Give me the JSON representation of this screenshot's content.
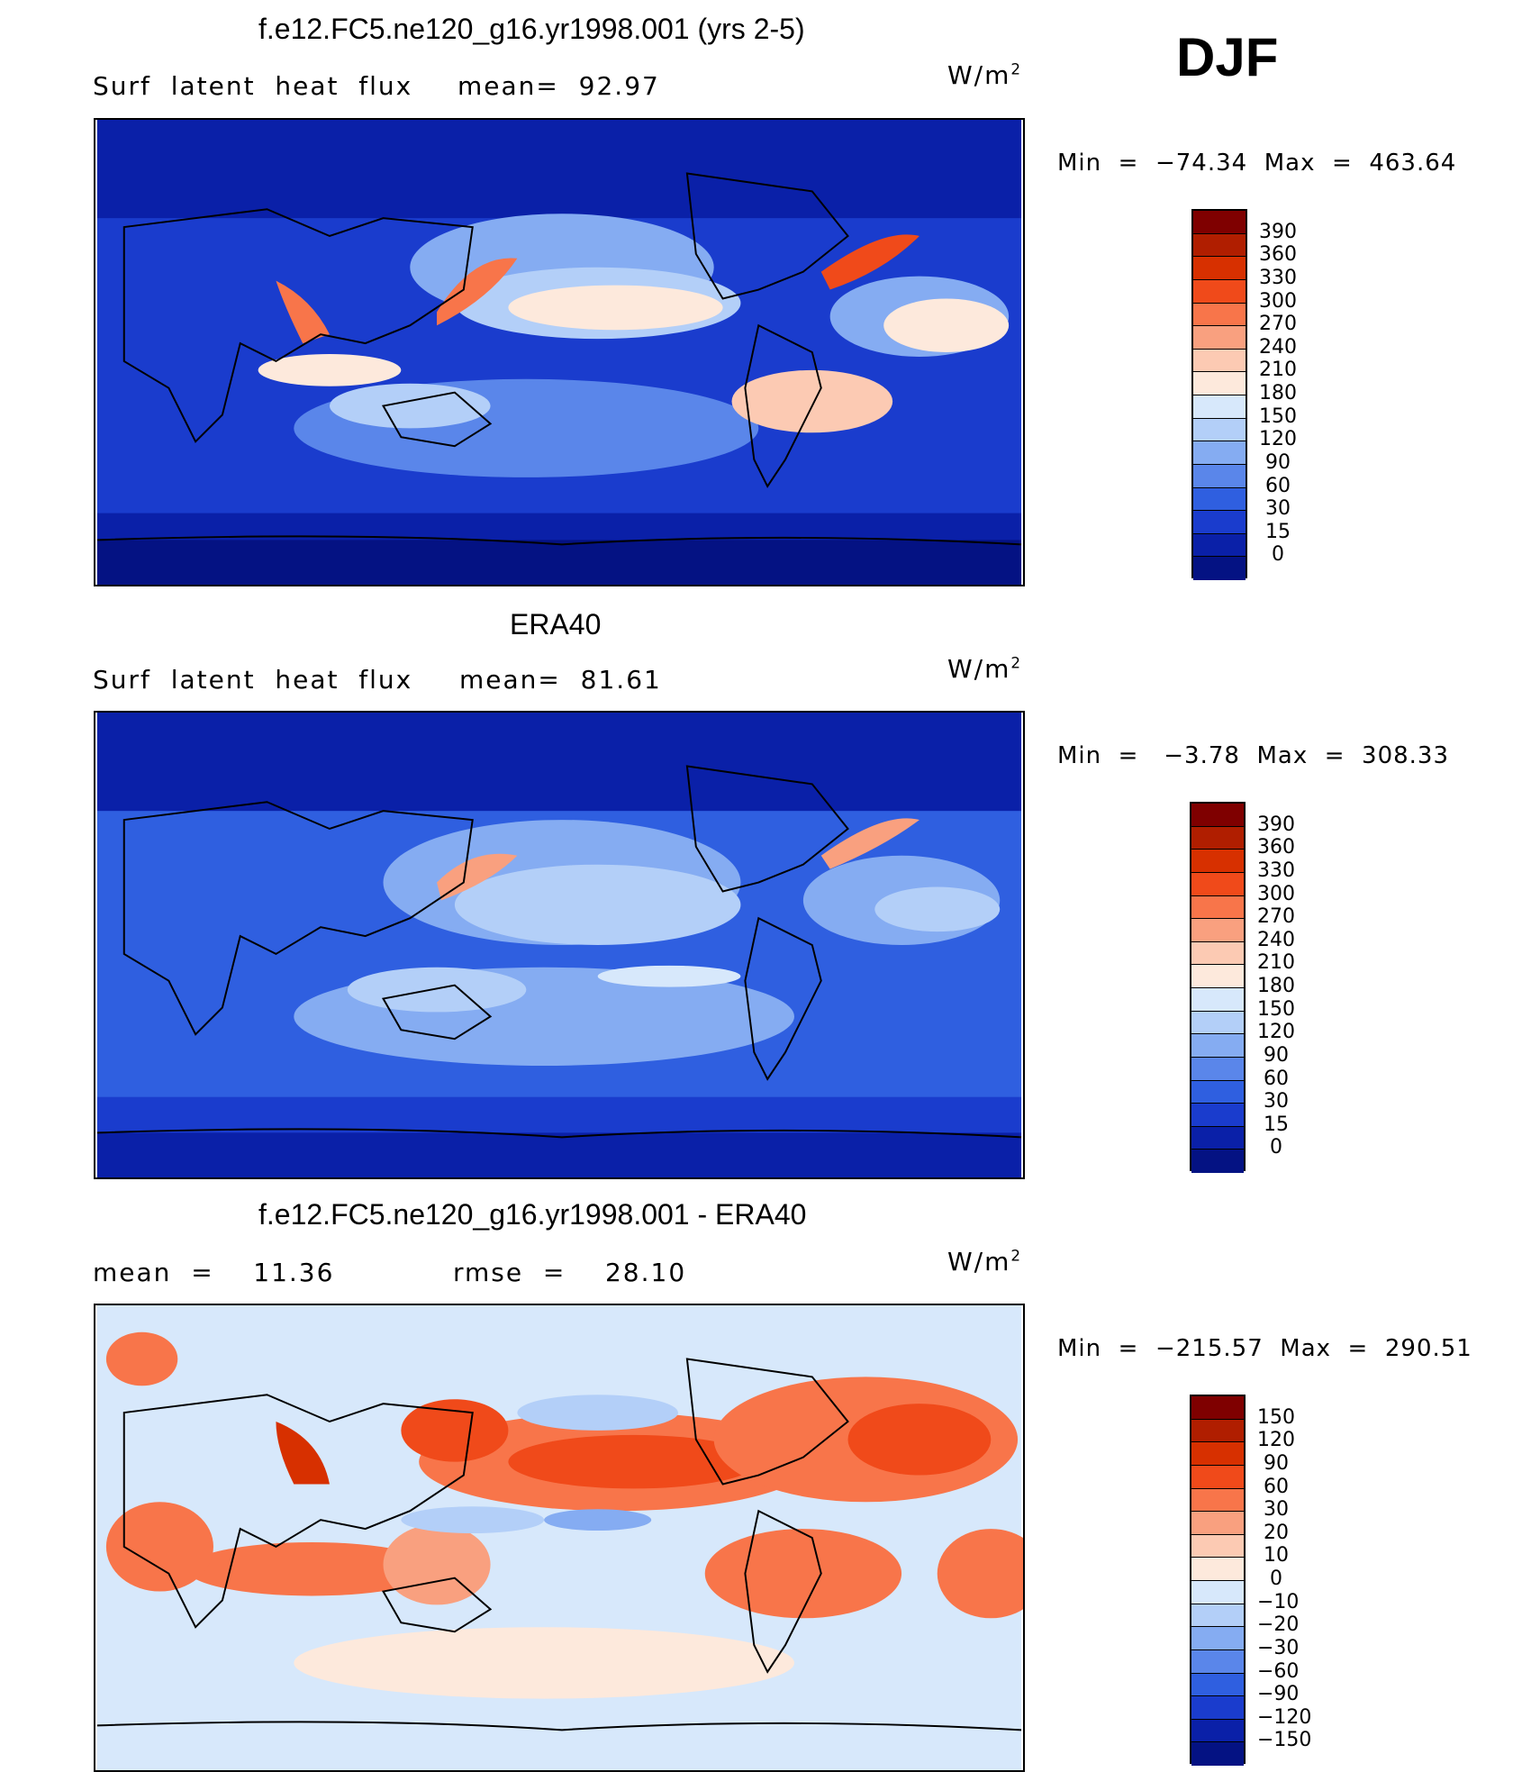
{
  "season": "DJF",
  "units_base": "W/m",
  "units_exp": "2",
  "panels": [
    {
      "title": "f.e12.FC5.ne120_g16.yr1998.001 (yrs 2-5)",
      "left_label": "Surf  latent  heat  flux",
      "stat_label": "mean=  92.97",
      "minmax": "Min  =  −74.34  Max  =  463.64",
      "levels": [
        "390",
        "360",
        "330",
        "300",
        "270",
        "240",
        "210",
        "180",
        "150",
        "120",
        "90",
        "60",
        "30",
        "15",
        "0"
      ],
      "colors": [
        "#7f0000",
        "#b01e00",
        "#d73000",
        "#f04a1a",
        "#f8754a",
        "#f9a07f",
        "#fccab3",
        "#fde9dc",
        "#d7e8fb",
        "#b3cff8",
        "#85acf2",
        "#5a86ea",
        "#2f5fe0",
        "#1a3ccd",
        "#0a20a8",
        "#041283"
      ]
    },
    {
      "title": "ERA40",
      "left_label": "Surf  latent  heat  flux",
      "stat_label": "mean=  81.61",
      "minmax": "Min  =   −3.78  Max  =  308.33",
      "levels": [
        "390",
        "360",
        "330",
        "300",
        "270",
        "240",
        "210",
        "180",
        "150",
        "120",
        "90",
        "60",
        "30",
        "15",
        "0"
      ],
      "colors": [
        "#7f0000",
        "#b01e00",
        "#d73000",
        "#f04a1a",
        "#f8754a",
        "#f9a07f",
        "#fccab3",
        "#fde9dc",
        "#d7e8fb",
        "#b3cff8",
        "#85acf2",
        "#5a86ea",
        "#2f5fe0",
        "#1a3ccd",
        "#0a20a8",
        "#041283"
      ]
    },
    {
      "title": "f.e12.FC5.ne120_g16.yr1998.001 - ERA40",
      "left_label": "mean  =    11.36",
      "stat_label": "rmse  =    28.10",
      "minmax": "Min  =  −215.57  Max  =  290.51",
      "levels": [
        "150",
        "120",
        "90",
        "60",
        "30",
        "20",
        "10",
        "0",
        "−10",
        "−20",
        "−30",
        "−60",
        "−90",
        "−120",
        "−150"
      ],
      "colors": [
        "#7f0000",
        "#b01e00",
        "#d73000",
        "#f04a1a",
        "#f8754a",
        "#f9a07f",
        "#fccab3",
        "#fde9dc",
        "#d7e8fb",
        "#b3cff8",
        "#85acf2",
        "#5a86ea",
        "#2f5fe0",
        "#1a3ccd",
        "#0a20a8",
        "#041283"
      ]
    }
  ]
}
